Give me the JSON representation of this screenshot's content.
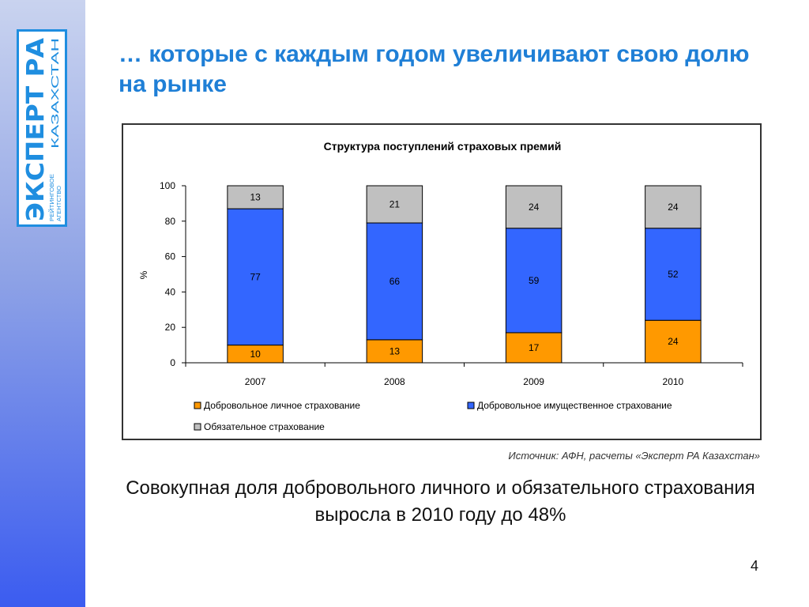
{
  "logo": {
    "brand": "ЭКСПЕРТ РА",
    "region": "КАЗАХСТАН",
    "tagline_1": "РЕЙТИНГОВОЕ",
    "tagline_2": "АГЕНТСТВО"
  },
  "slide": {
    "title": "… которые с каждым годом увеличивают свою долю на рынке",
    "source": "Источник: АФН, расчеты «Эксперт РА Казахстан»",
    "conclusion": "Совокупная доля добровольного личного и обязательного страхования выросла в 2010 году до 48%",
    "page_number": "4"
  },
  "colors": {
    "voluntary_personal": "#ff9900",
    "voluntary_property": "#3366ff",
    "mandatory": "#c0c0c0",
    "title": "#1f7fd6",
    "logo_blue": "#1f8ee0"
  },
  "chart_data": {
    "type": "bar",
    "stacked": true,
    "title": "Структура поступлений страховых премий",
    "xlabel": "",
    "ylabel": "%",
    "ylim": [
      0,
      100
    ],
    "yticks": [
      0,
      20,
      40,
      60,
      80,
      100
    ],
    "grid": false,
    "legend_position": "bottom",
    "categories": [
      "2007",
      "2008",
      "2009",
      "2010"
    ],
    "series": [
      {
        "name": "Добровольное личное страхование",
        "values": [
          10,
          13,
          17,
          24
        ],
        "color": "#ff9900"
      },
      {
        "name": "Добровольное имущественное страхование",
        "values": [
          77,
          66,
          59,
          52
        ],
        "color": "#3366ff"
      },
      {
        "name": "Обязательное страхование",
        "values": [
          13,
          21,
          24,
          24
        ],
        "color": "#c0c0c0"
      }
    ]
  }
}
